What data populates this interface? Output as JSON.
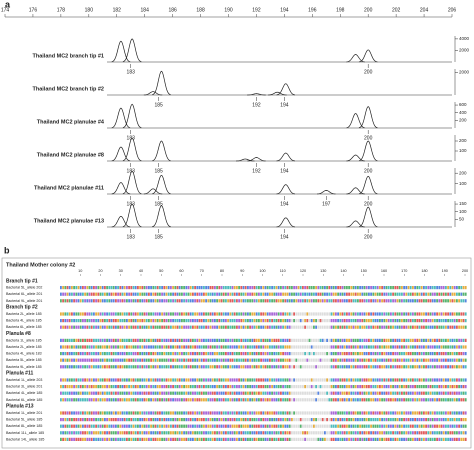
{
  "panel_a": {
    "label": "a",
    "xlim": [
      174,
      206
    ],
    "xticks": [
      174,
      176,
      178,
      180,
      182,
      184,
      186,
      188,
      190,
      192,
      194,
      196,
      198,
      200,
      202,
      204,
      206
    ],
    "traces": [
      {
        "name": "Thailand MC2 branch tip #1",
        "ylim": [
          0,
          4500
        ],
        "yticks": [
          2000,
          4000
        ],
        "peaks": [
          {
            "x": 182.3,
            "h": 3600
          },
          {
            "x": 183.1,
            "h": 4000
          },
          {
            "x": 199.1,
            "h": 1300
          },
          {
            "x": 200.0,
            "h": 2100
          }
        ],
        "labels": [
          183,
          200
        ]
      },
      {
        "name": "Thailand MC2 branch tip #2",
        "ylim": [
          0,
          2300
        ],
        "yticks": [
          2000
        ],
        "peaks": [
          {
            "x": 184.6,
            "h": 300
          },
          {
            "x": 185.2,
            "h": 2100
          },
          {
            "x": 192.0,
            "h": 120
          },
          {
            "x": 193.5,
            "h": 250
          },
          {
            "x": 194.1,
            "h": 1000
          }
        ],
        "labels": [
          185,
          192,
          194
        ]
      },
      {
        "name": "Thailand MC2 planulae #4",
        "ylim": [
          0,
          680
        ],
        "yticks": [
          200,
          400,
          600
        ],
        "peaks": [
          {
            "x": 182.3,
            "h": 520
          },
          {
            "x": 183.1,
            "h": 620
          },
          {
            "x": 199.1,
            "h": 380
          },
          {
            "x": 200.0,
            "h": 560
          }
        ],
        "labels": [
          183,
          200
        ]
      },
      {
        "name": "Thailand MC2 planulae #8",
        "ylim": [
          0,
          260
        ],
        "yticks": [
          100,
          200
        ],
        "peaks": [
          {
            "x": 182.3,
            "h": 140
          },
          {
            "x": 183.1,
            "h": 230
          },
          {
            "x": 185.2,
            "h": 200
          },
          {
            "x": 191.2,
            "h": 20
          },
          {
            "x": 192.0,
            "h": 35
          },
          {
            "x": 194.1,
            "h": 80
          },
          {
            "x": 199.1,
            "h": 60
          },
          {
            "x": 200.0,
            "h": 200
          }
        ],
        "labels": [
          183,
          185,
          192,
          194,
          200
        ]
      },
      {
        "name": "Thailand MC2 planulae #11",
        "ylim": [
          0,
          250
        ],
        "yticks": [
          100,
          200
        ],
        "peaks": [
          {
            "x": 182.3,
            "h": 110
          },
          {
            "x": 183.1,
            "h": 220
          },
          {
            "x": 184.6,
            "h": 50
          },
          {
            "x": 185.2,
            "h": 180
          },
          {
            "x": 194.1,
            "h": 90
          },
          {
            "x": 197.0,
            "h": 35
          },
          {
            "x": 199.1,
            "h": 60
          },
          {
            "x": 200.0,
            "h": 170
          }
        ],
        "labels": [
          183,
          185,
          194,
          197,
          200
        ]
      },
      {
        "name": "Thailand MC2 planulae #13",
        "ylim": [
          0,
          170
        ],
        "yticks": [
          50,
          100,
          150
        ],
        "peaks": [
          {
            "x": 182.3,
            "h": 70
          },
          {
            "x": 183.1,
            "h": 150
          },
          {
            "x": 185.2,
            "h": 140
          },
          {
            "x": 194.1,
            "h": 60
          },
          {
            "x": 199.1,
            "h": 40
          },
          {
            "x": 200.0,
            "h": 130
          }
        ],
        "labels": [
          183,
          185,
          194,
          200
        ]
      }
    ]
  },
  "panel_b": {
    "label": "b",
    "title": "Thailand Mother colony #2",
    "ruler": [
      10,
      20,
      30,
      40,
      50,
      60,
      70,
      80,
      90,
      100,
      110,
      120,
      130,
      140,
      150,
      160,
      170,
      180,
      190,
      200
    ],
    "groups": [
      {
        "name": "Branch tip #1",
        "rows": [
          "Bacterial 5L_allele 202",
          "Bacterial 6L_allele 201",
          "Bacterial 9L_allele 201"
        ]
      },
      {
        "name": "Branch tip #2",
        "rows": [
          "Bacteria 2L_allele 185",
          "Bacteria 4L_allele 185",
          "Bacteria 6L_allele 185"
        ]
      },
      {
        "name": "Planula #8",
        "rows": [
          "Bacteria 1L_allele 185",
          "Bacteria 2L_allele 185",
          "Bacteria 4L_allele 183",
          "Bacteria 5L_allele 185",
          "Bacteria 9L_allele 185"
        ]
      },
      {
        "name": "Planula #11",
        "rows": [
          "Bacterial 1L_allele 203",
          "Bacterial 3L_allele 201",
          "Bacterial 4L_allele 185",
          "Bacterial 6L_allele 185"
        ]
      },
      {
        "name": "Planula #13",
        "rows": [
          "Bacterial 1L_allele 201",
          "Bacterial 5L_allele 185",
          "Bacterial 8L_allele 185",
          "Bacterial 11L_allele 185",
          "Bacterial 14L_allele 185"
        ]
      }
    ]
  }
}
